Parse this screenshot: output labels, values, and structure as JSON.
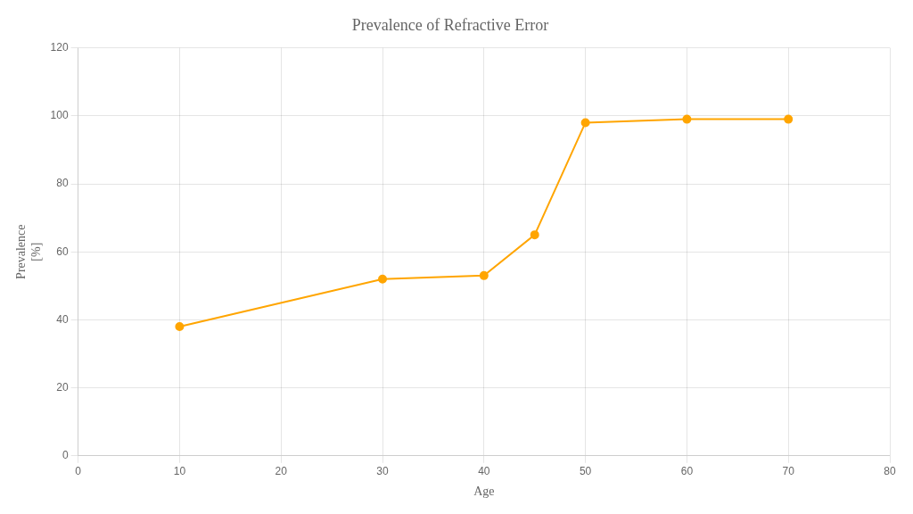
{
  "chart_data": {
    "type": "line",
    "title": "Prevalence of Refractive Error",
    "xlabel": "Age",
    "ylabel": "Prevalence\n[%]",
    "x": [
      10,
      30,
      40,
      45,
      50,
      60,
      70
    ],
    "values": [
      38,
      52,
      53,
      65,
      98,
      99,
      99
    ],
    "color": "#FFA500",
    "marker": "circle",
    "line_style": "solid",
    "xlim": [
      0,
      80
    ],
    "xticks": [
      0,
      10,
      20,
      30,
      40,
      50,
      60,
      70,
      80
    ],
    "ylim": [
      0,
      120
    ],
    "yticks": [
      0,
      20,
      40,
      60,
      80,
      100,
      120
    ],
    "grid": true
  }
}
